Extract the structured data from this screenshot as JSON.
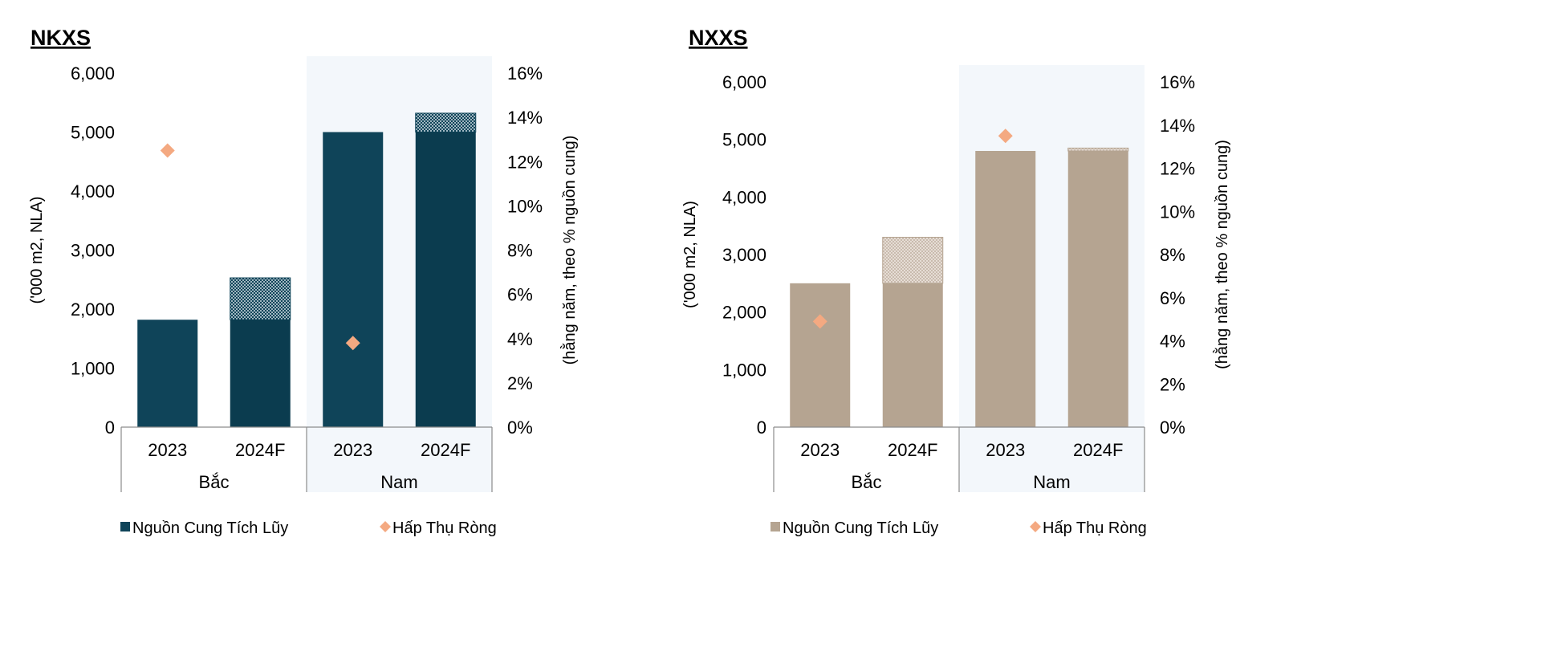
{
  "chart_data": [
    {
      "type": "bar",
      "title": "NKXS",
      "ylabel": "('000 m2, NLA)",
      "y2label": "(hằng năm, theo % nguồn cung)",
      "ylim": [
        0,
        6000
      ],
      "yticks": [
        "0",
        "1,000",
        "2,000",
        "3,000",
        "4,000",
        "5,000",
        "6,000"
      ],
      "y2lim": [
        0,
        16
      ],
      "y2ticks": [
        "0%",
        "2%",
        "4%",
        "6%",
        "8%",
        "10%",
        "12%",
        "14%",
        "16%"
      ],
      "groups": [
        "Bắc",
        "Nam"
      ],
      "categories": [
        "2023",
        "2024F",
        "2023",
        "2024F"
      ],
      "highlighted_group": "Nam",
      "series": [
        {
          "name": "Nguồn Cung Tích Lũy",
          "kind": "bar",
          "color": "#0f4459",
          "values": [
            1820,
            2530,
            5000,
            5320
          ],
          "existing": [
            1820,
            1820,
            5000,
            5000
          ]
        },
        {
          "name": "Hấp Thụ Ròng",
          "kind": "diamond",
          "axis": "right",
          "color": "#f4a981",
          "values": [
            12.5,
            null,
            3.8,
            null
          ]
        }
      ],
      "legend_position": "bottom"
    },
    {
      "type": "bar",
      "title": "NXXS",
      "ylabel": "('000 m2, NLA)",
      "y2label": "(hằng năm, theo % nguồn cung)",
      "ylim": [
        0,
        6000
      ],
      "yticks": [
        "0",
        "1,000",
        "2,000",
        "3,000",
        "4,000",
        "5,000",
        "6,000"
      ],
      "y2lim": [
        0,
        16
      ],
      "y2ticks": [
        "0%",
        "2%",
        "4%",
        "6%",
        "8%",
        "10%",
        "12%",
        "14%",
        "16%"
      ],
      "groups": [
        "Bắc",
        "Nam"
      ],
      "categories": [
        "2023",
        "2024F",
        "2023",
        "2024F"
      ],
      "highlighted_group": "Nam",
      "series": [
        {
          "name": "Nguồn Cung Tích Lũy",
          "kind": "bar",
          "color": "#b5a491",
          "values": [
            2500,
            3300,
            4800,
            4850
          ],
          "existing": [
            2500,
            2500,
            4800,
            4800
          ]
        },
        {
          "name": "Hấp Thụ Ròng",
          "kind": "diamond",
          "axis": "right",
          "color": "#f4a981",
          "values": [
            4.9,
            null,
            13.5,
            null
          ]
        }
      ],
      "legend_position": "bottom"
    }
  ]
}
